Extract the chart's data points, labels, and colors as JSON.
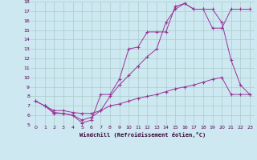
{
  "xlabel": "Windchill (Refroidissement éolien,°C)",
  "bg_color": "#cde8f0",
  "grid_color": "#aacccc",
  "line_color": "#993399",
  "xmin": 0,
  "xmax": 23,
  "ymin": 5,
  "ymax": 18,
  "line1_x": [
    1,
    2,
    3,
    4,
    5,
    6,
    7,
    8,
    9,
    10,
    11,
    12,
    13,
    14,
    15,
    16,
    17,
    18,
    19,
    20,
    21,
    22,
    23
  ],
  "line1_y": [
    7.0,
    6.3,
    6.2,
    6.0,
    5.2,
    5.5,
    8.2,
    8.2,
    9.8,
    13.0,
    13.2,
    14.8,
    14.8,
    14.8,
    17.5,
    17.8,
    17.2,
    17.2,
    17.2,
    15.8,
    11.8,
    9.2,
    8.2
  ],
  "line2_x": [
    0,
    1,
    2,
    3,
    4,
    5,
    6,
    7,
    8,
    9,
    10,
    11,
    12,
    13,
    14,
    15,
    16,
    17,
    18,
    19,
    20,
    21,
    22,
    23
  ],
  "line2_y": [
    7.5,
    7.0,
    6.2,
    6.2,
    6.0,
    5.5,
    5.8,
    6.5,
    8.0,
    9.2,
    10.2,
    11.2,
    12.2,
    13.0,
    15.8,
    17.2,
    17.8,
    17.2,
    17.2,
    15.2,
    15.2,
    17.2,
    17.2,
    17.2
  ],
  "line3_x": [
    0,
    1,
    2,
    3,
    4,
    5,
    6,
    7,
    8,
    9,
    10,
    11,
    12,
    13,
    14,
    15,
    16,
    17,
    18,
    19,
    20,
    21,
    22,
    23
  ],
  "line3_y": [
    7.5,
    7.0,
    6.5,
    6.5,
    6.3,
    6.2,
    6.2,
    6.5,
    7.0,
    7.2,
    7.5,
    7.8,
    8.0,
    8.2,
    8.5,
    8.8,
    9.0,
    9.2,
    9.5,
    9.8,
    10.0,
    8.2,
    8.2,
    8.2
  ]
}
